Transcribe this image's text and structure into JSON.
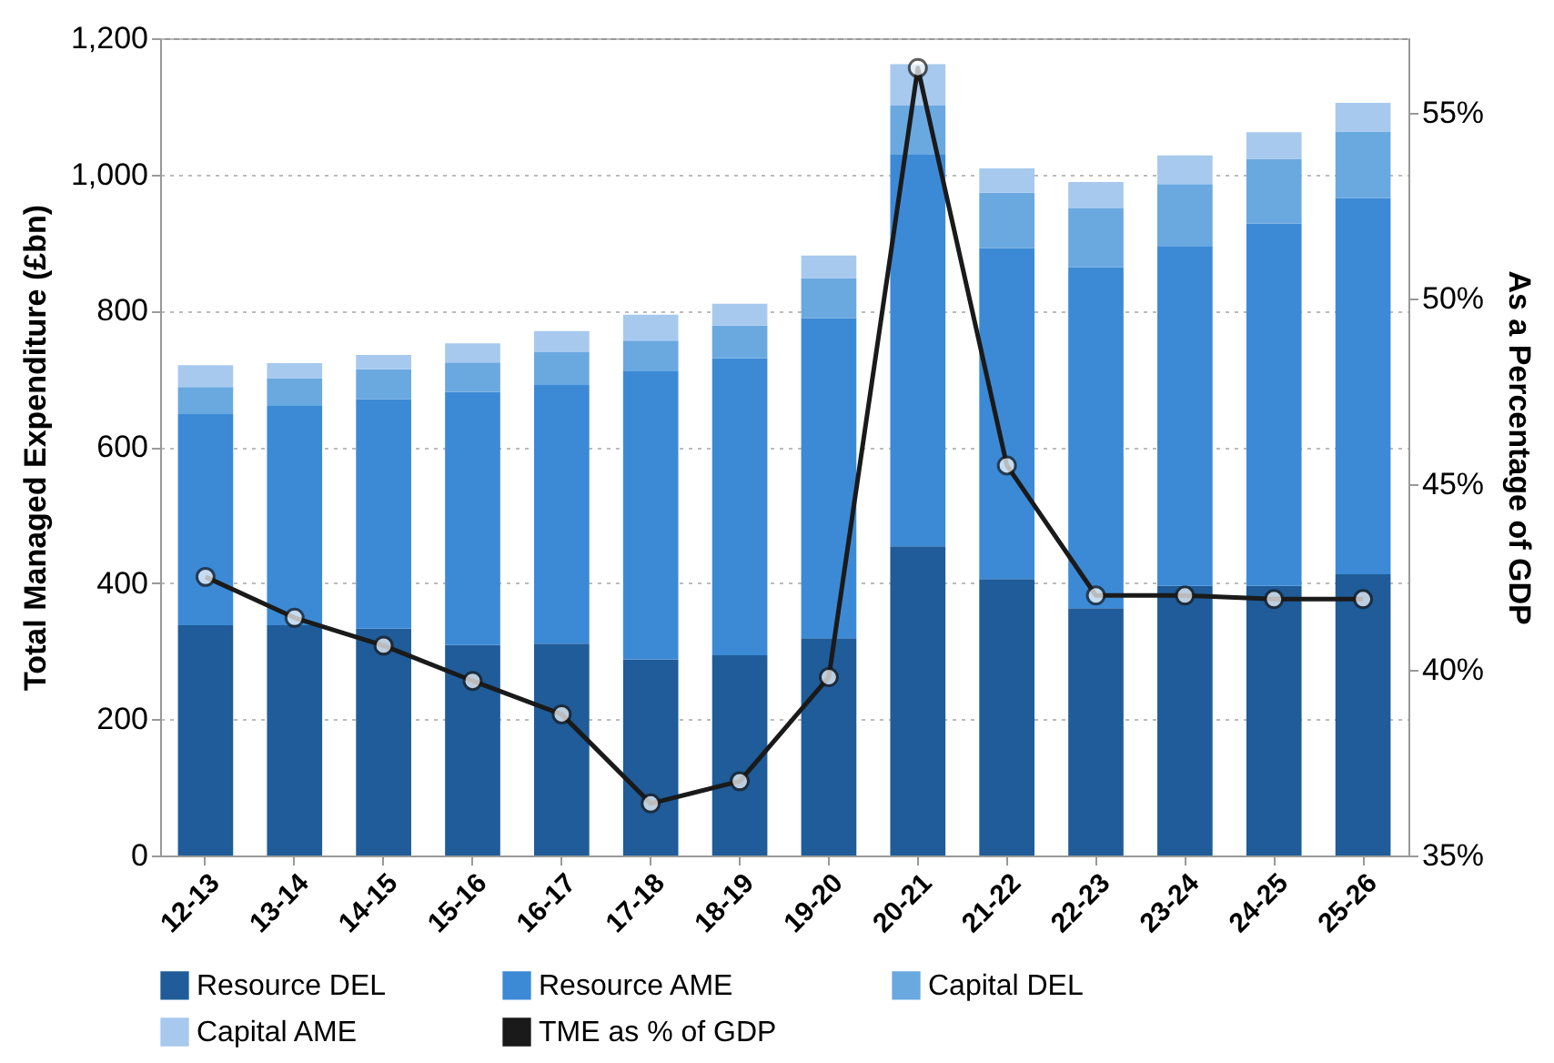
{
  "chart_data": {
    "type": "bar",
    "stacked": true,
    "categories": [
      "12-13",
      "13-14",
      "14-15",
      "15-16",
      "16-17",
      "17-18",
      "18-19",
      "19-20",
      "20-21",
      "21-22",
      "22-23",
      "23-24",
      "24-25",
      "25-26"
    ],
    "ylabel": "Total Managed Expenditure (£bn)",
    "y2label": "As a Percentage of GDP",
    "ylim": [
      0,
      1200
    ],
    "yticks": [
      0,
      200,
      400,
      600,
      800,
      {
        "value": 1000,
        "label": "1,000"
      },
      {
        "value": 1200,
        "label": "1,200"
      }
    ],
    "y2lim": [
      35,
      57
    ],
    "y2ticks": [
      {
        "value": 35,
        "label": "35%"
      },
      {
        "value": 40,
        "label": "40%"
      },
      {
        "value": 45,
        "label": "45%"
      },
      {
        "value": 50,
        "label": "50%"
      },
      {
        "value": 55,
        "label": "55%"
      }
    ],
    "grid": "y",
    "legend": "bottom",
    "marker": "circle",
    "series": [
      {
        "name": "Resource DEL",
        "color": "#1f5c99",
        "values": [
          338,
          338,
          333,
          309,
          311,
          288,
          294,
          319,
          454,
          406,
          363,
          396,
          396,
          413
        ]
      },
      {
        "name": "Resource AME",
        "color": "#3c8ad6",
        "values": [
          310,
          322,
          337,
          372,
          380,
          423,
          436,
          470,
          576,
          486,
          501,
          498,
          532,
          552
        ]
      },
      {
        "name": "Capital DEL",
        "color": "#6aa8e0",
        "values": [
          40,
          41,
          44,
          43,
          48,
          45,
          48,
          59,
          71,
          81,
          86,
          92,
          95,
          98
        ]
      },
      {
        "name": "Capital AME",
        "color": "#a7c9ee",
        "values": [
          32,
          22,
          21,
          28,
          31,
          38,
          32,
          33,
          61,
          36,
          39,
          42,
          39,
          42
        ]
      },
      {
        "name": "TME as % of GDP",
        "type": "line",
        "axis": "y2",
        "color": "#1a1a1a",
        "values": [
          42.5,
          41.4,
          40.65,
          39.7,
          38.8,
          36.4,
          37.0,
          39.8,
          56.2,
          45.5,
          42.0,
          42.0,
          41.9,
          41.9
        ]
      }
    ]
  }
}
